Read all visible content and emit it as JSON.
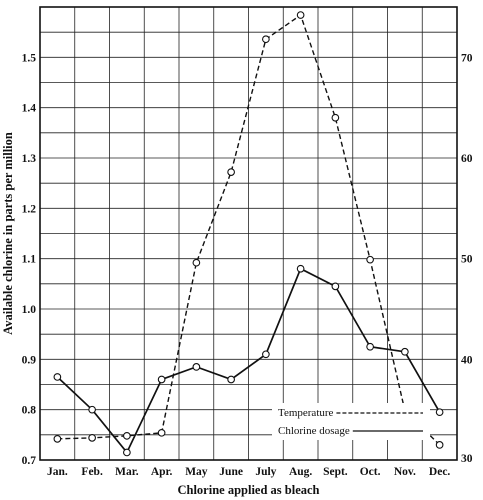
{
  "chart_data": {
    "type": "line",
    "xlabel": "Chlorine applied as bleach",
    "ylabel": "Available chlorine in parts per million",
    "categories": [
      "Jan.",
      "Feb.",
      "Mar.",
      "Apr.",
      "May",
      "June",
      "July",
      "Aug.",
      "Sept.",
      "Oct.",
      "Nov.",
      "Dec."
    ],
    "ylim": [
      0.7,
      1.6
    ],
    "yticks": [
      "0.7",
      "0.8",
      "0.9",
      "1.0",
      "1.1",
      "1.2",
      "1.3",
      "1.4",
      "1.5"
    ],
    "y2lim": [
      30,
      75
    ],
    "y2ticks": [
      "30",
      "40",
      "50",
      "60",
      "70"
    ],
    "grid": true,
    "legend_position": "bottom-right",
    "series": [
      {
        "name": "Temperature",
        "axis": "right",
        "style": "dashed",
        "color": "#111111",
        "values": [
          32.1,
          32.2,
          32.4,
          32.7,
          49.6,
          58.6,
          71.8,
          74.2,
          64.0,
          49.9,
          34.9,
          31.5
        ]
      },
      {
        "name": "Chlorine dosage",
        "axis": "left",
        "style": "solid",
        "color": "#111111",
        "values": [
          0.865,
          0.8,
          0.715,
          0.86,
          0.885,
          0.86,
          0.91,
          1.08,
          1.045,
          0.925,
          0.915,
          0.795
        ]
      }
    ]
  }
}
